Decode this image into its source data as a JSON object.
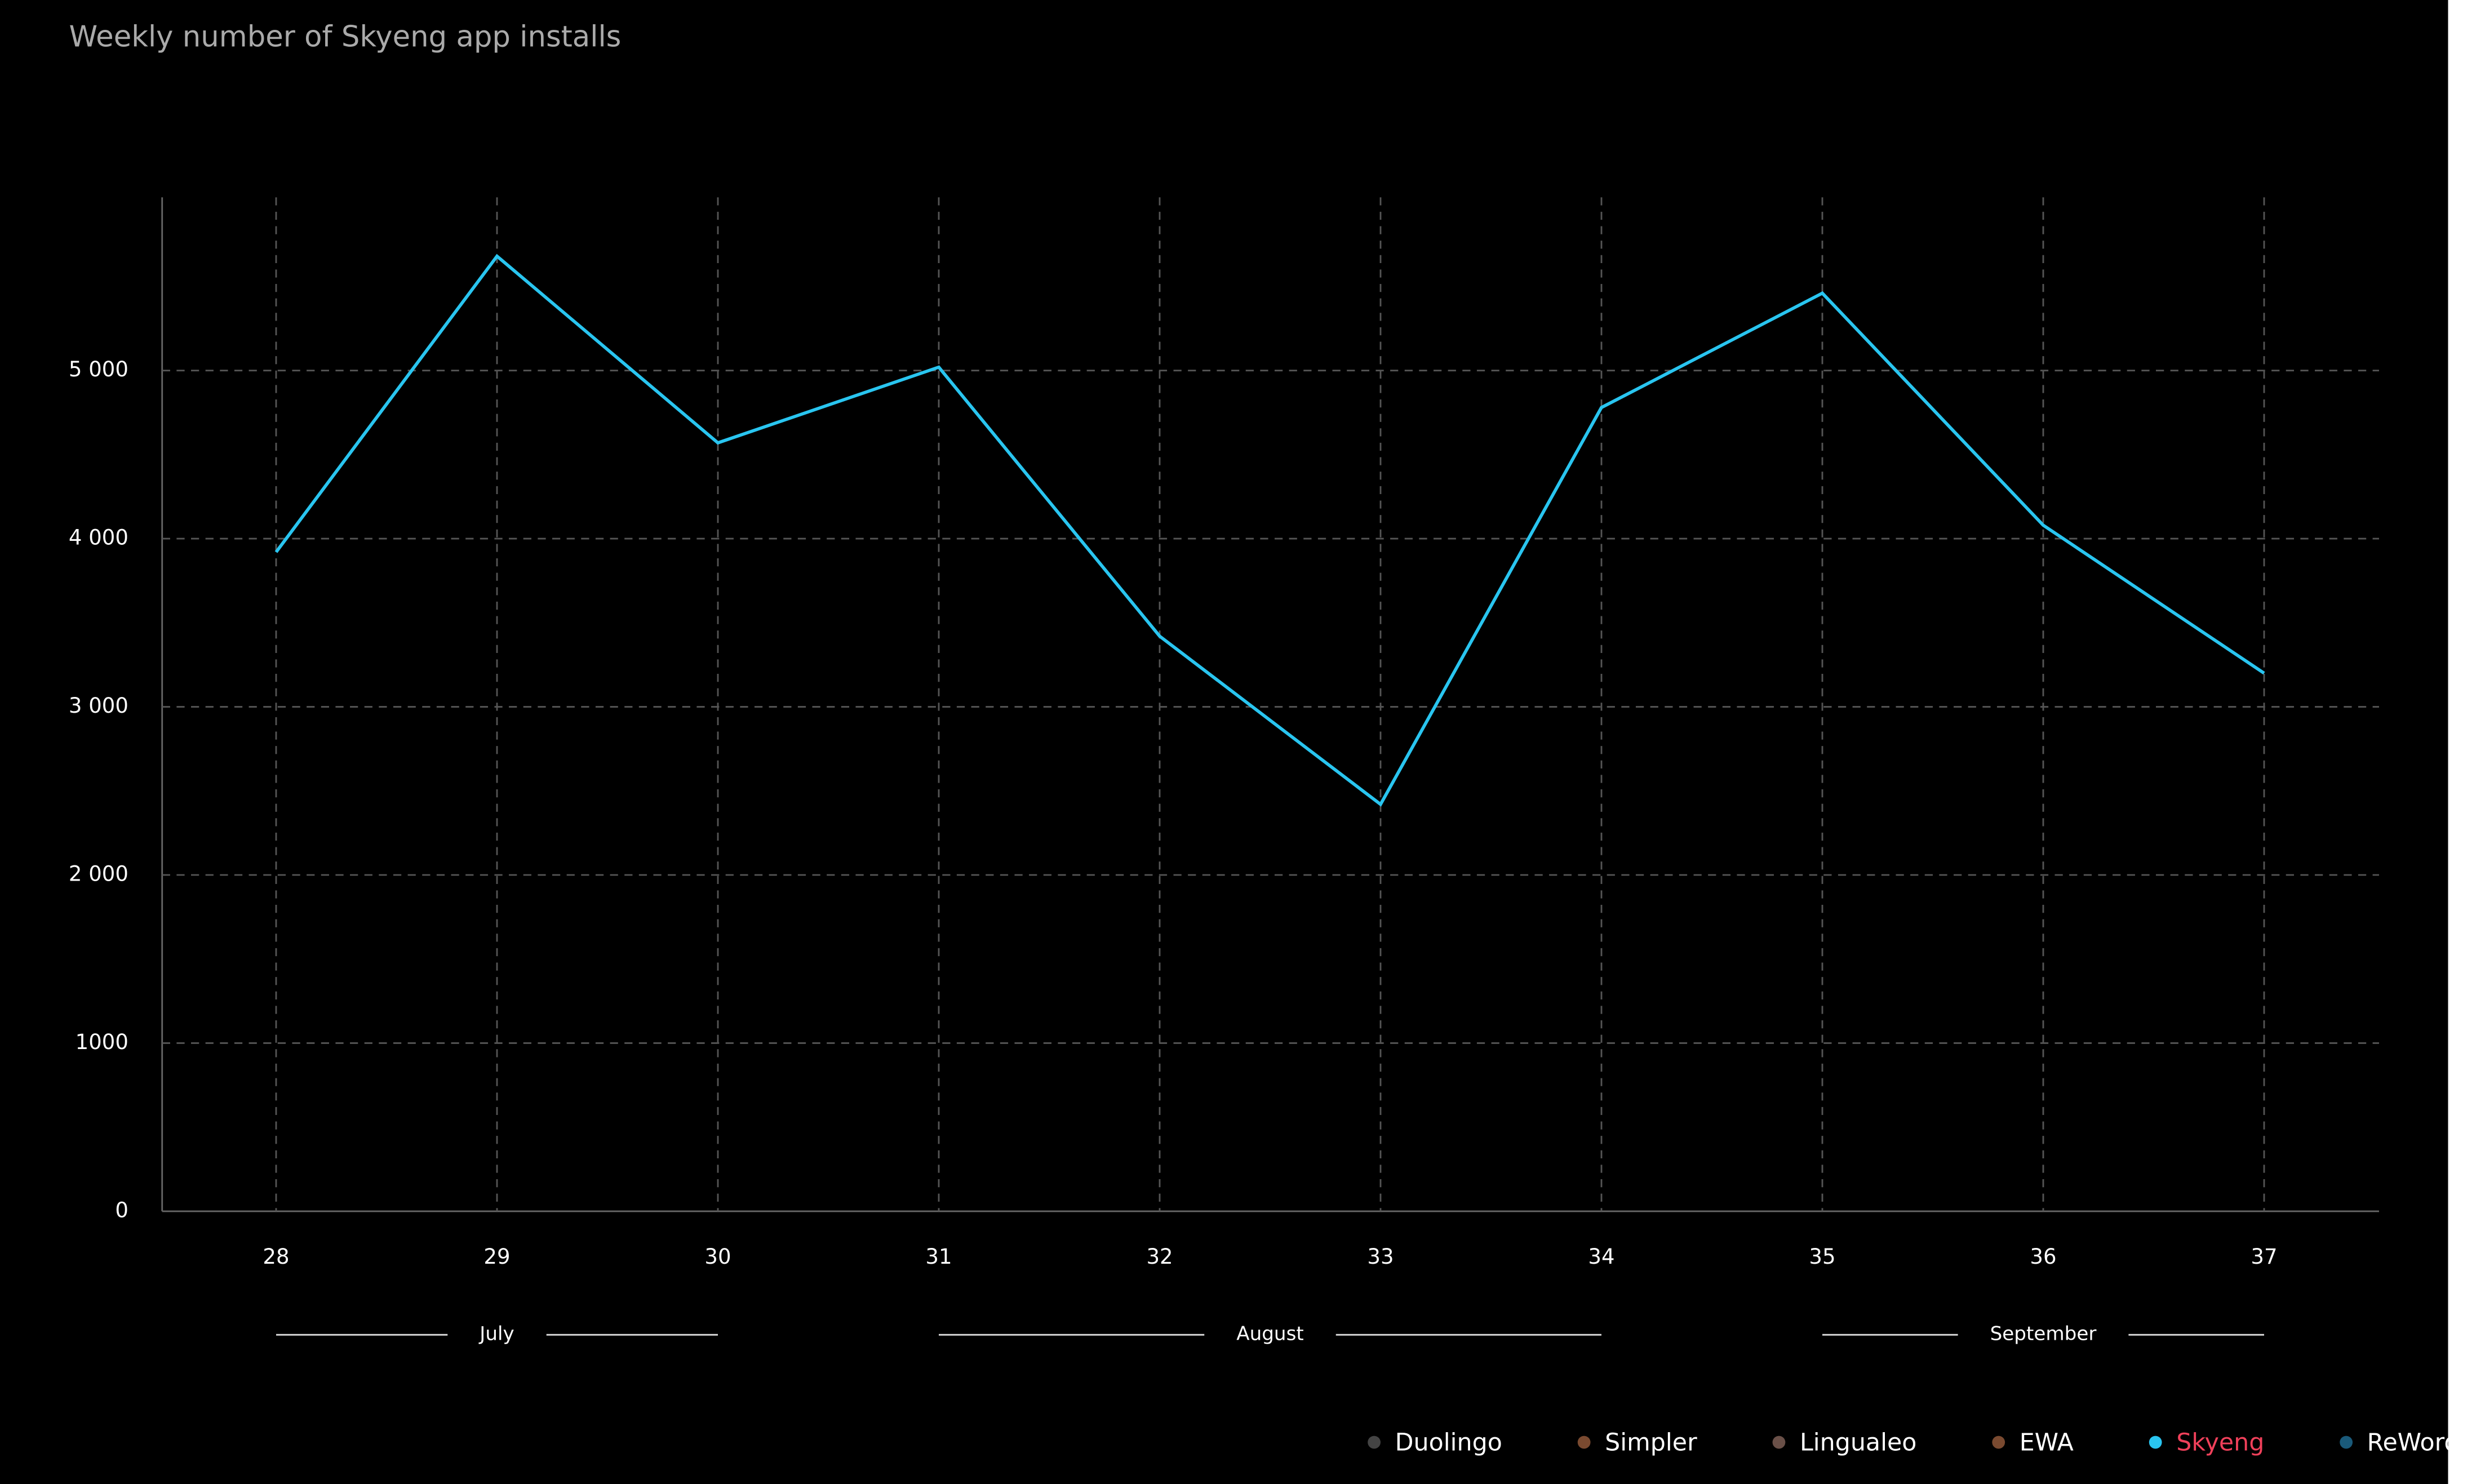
{
  "chart_data": {
    "type": "line",
    "title": "Weekly number of Skyeng app installs",
    "categories": [
      "28",
      "29",
      "30",
      "31",
      "32",
      "33",
      "34",
      "35",
      "36",
      "37"
    ],
    "series": [
      {
        "name": "Skyeng",
        "color": "#29c5f0",
        "values": [
          3920,
          5680,
          4570,
          5020,
          3420,
          2420,
          4780,
          5460,
          4080,
          3200
        ]
      }
    ],
    "ylim": [
      0,
      6030
    ],
    "yticks": [
      0,
      1000,
      {
        "value": 2000,
        "label": "2 000"
      },
      {
        "value": 3000,
        "label": "3 000"
      },
      {
        "value": 4000,
        "label": "4 000"
      },
      {
        "value": 5000,
        "label": "5 000"
      }
    ],
    "grid": true,
    "months": [
      {
        "name": "July",
        "first": "28",
        "last": "30"
      },
      {
        "name": "August",
        "first": "31",
        "last": "34"
      },
      {
        "name": "September",
        "first": "35",
        "last": "37"
      }
    ],
    "legend": [
      {
        "name": "Duolingo",
        "color": "#444444"
      },
      {
        "name": "Simpler",
        "color": "#7a4a30"
      },
      {
        "name": "Lingualeo",
        "color": "#6a5048"
      },
      {
        "name": "EWA",
        "color": "#7a4a30"
      },
      {
        "name": "Skyeng",
        "color": "#29c5f0"
      },
      {
        "name": "ReWord",
        "color": "#1a5a7a"
      }
    ],
    "legend_active": "Skyeng",
    "legend_active_text_color": "#f0405a"
  }
}
